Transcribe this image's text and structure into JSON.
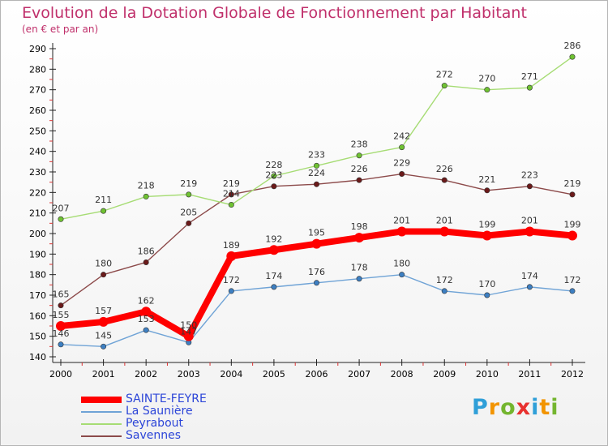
{
  "title": "Evolution de la Dotation Globale de Fonctionnement par Habitant",
  "subtitle": "(en € et par an)",
  "logo": {
    "letters": [
      {
        "ch": "P",
        "color": "#2f9fd8"
      },
      {
        "ch": "r",
        "color": "#f29400"
      },
      {
        "ch": "o",
        "color": "#74b52f"
      },
      {
        "ch": "x",
        "color": "#e8312f"
      },
      {
        "ch": "i",
        "color": "#2f9fd8"
      },
      {
        "ch": "t",
        "color": "#f29400"
      },
      {
        "ch": "i",
        "color": "#74b52f"
      }
    ]
  },
  "chart_data": {
    "type": "line",
    "title": "Evolution de la Dotation Globale de Fonctionnement par Habitant",
    "subtitle": "(en € et par an)",
    "x": [
      "2000",
      "2001",
      "2002",
      "2003",
      "2004",
      "2005",
      "2006",
      "2007",
      "2008",
      "2009",
      "2010",
      "2011",
      "2012"
    ],
    "ylim": [
      140,
      290
    ],
    "yticks": [
      140,
      150,
      160,
      170,
      180,
      190,
      200,
      210,
      220,
      230,
      240,
      250,
      260,
      270,
      280,
      290
    ],
    "grid": false,
    "legend_position": "bottom-left",
    "series": [
      {
        "name": "SAINTE-FEYRE",
        "color": "#ff0000",
        "line_color": "#ff0000",
        "values": [
          155,
          157,
          162,
          150,
          189,
          192,
          195,
          198,
          201,
          201,
          199,
          201,
          199
        ]
      },
      {
        "name": "La Saunière",
        "color": "#3d7fc2",
        "line_color": "#6fa3d6",
        "values": [
          146,
          145,
          153,
          147,
          172,
          174,
          176,
          178,
          180,
          172,
          170,
          174,
          172
        ]
      },
      {
        "name": "Peyrabout",
        "color": "#6fc232",
        "line_color": "#a6dc74",
        "values": [
          207,
          211,
          218,
          219,
          214,
          228,
          233,
          238,
          242,
          272,
          270,
          271,
          286
        ]
      },
      {
        "name": "Savennes",
        "color": "#6b1a1a",
        "line_color": "#8c4a4a",
        "values": [
          165,
          180,
          186,
          205,
          219,
          223,
          224,
          226,
          229,
          226,
          221,
          223,
          219
        ]
      }
    ],
    "data_labels": [
      {
        "series": "SAINTE-FEYRE",
        "labels": [
          "155",
          "157",
          "162",
          "150",
          "189",
          "192",
          "195",
          "198",
          "201",
          "201",
          "199",
          "201",
          "199"
        ]
      },
      {
        "series": "La Saunière",
        "labels": [
          "146",
          "145",
          "153",
          "147",
          "172",
          "174",
          "176",
          "178",
          "180",
          "172",
          "170",
          "174",
          "172"
        ]
      },
      {
        "series": "Peyrabout",
        "labels": [
          "207",
          "211",
          "218",
          "219",
          "214",
          "228",
          "233",
          "238",
          "242",
          "272",
          "270",
          "271",
          "286"
        ]
      },
      {
        "series": "Savennes",
        "labels": [
          "165",
          "180",
          "186",
          "205",
          "219",
          "223",
          "224",
          "226",
          "229",
          "226",
          "221",
          "223",
          "219"
        ]
      }
    ]
  }
}
